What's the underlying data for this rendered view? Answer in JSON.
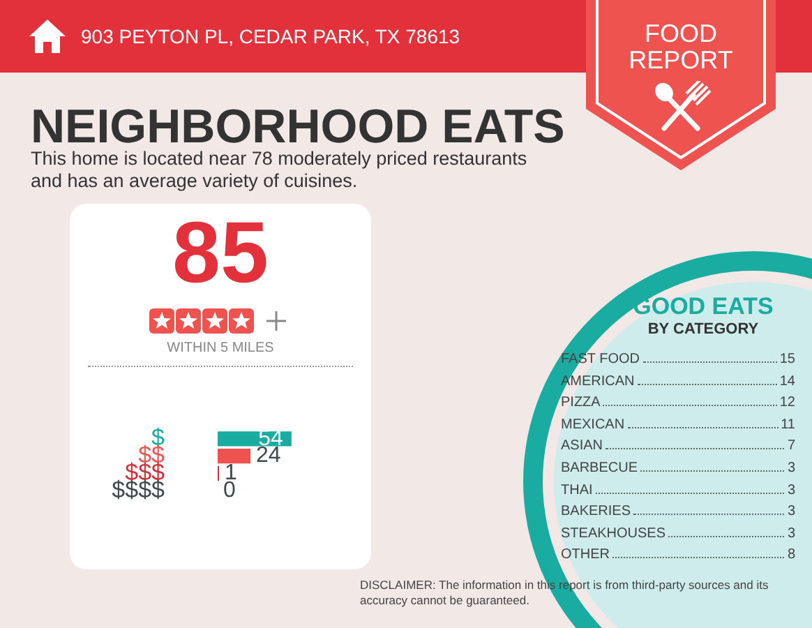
{
  "chart_data": [
    {
      "type": "bar",
      "orientation": "horizontal",
      "title": "NEIGHBORHOOD EATS",
      "subtitle": "This home is located near 78 moderately priced restaurants and has an average variety of cuisines.",
      "categories": [
        "$",
        "$$",
        "$$$",
        "$$$$"
      ],
      "values": [
        54,
        24,
        1,
        0
      ],
      "colors": [
        "#1aaca0",
        "#ef5350",
        "#d32f3a",
        "#3d4a4f"
      ],
      "data_labels": true,
      "legend": false,
      "annotations": [
        "903 PEYTON PL, CEDAR PARK, TX 78613",
        "FOOD REPORT",
        "85",
        "WITHIN 5 MILES",
        "DISCLAIMER: The information in this report is from third-party sources and its accuracy cannot be guaranteed."
      ]
    },
    {
      "type": "other",
      "title": "GOOD EATS",
      "subtitle": "BY CATEGORY",
      "categories": [
        "FAST FOOD",
        "AMERICAN",
        "PIZZA",
        "MEXICAN",
        "ASIAN",
        "BARBECUE",
        "THAI",
        "BAKERIES",
        "STEAKHOUSES",
        "OTHER"
      ],
      "values": [
        15,
        14,
        12,
        11,
        7,
        3,
        3,
        3,
        3,
        8
      ],
      "data_labels": true
    }
  ]
}
